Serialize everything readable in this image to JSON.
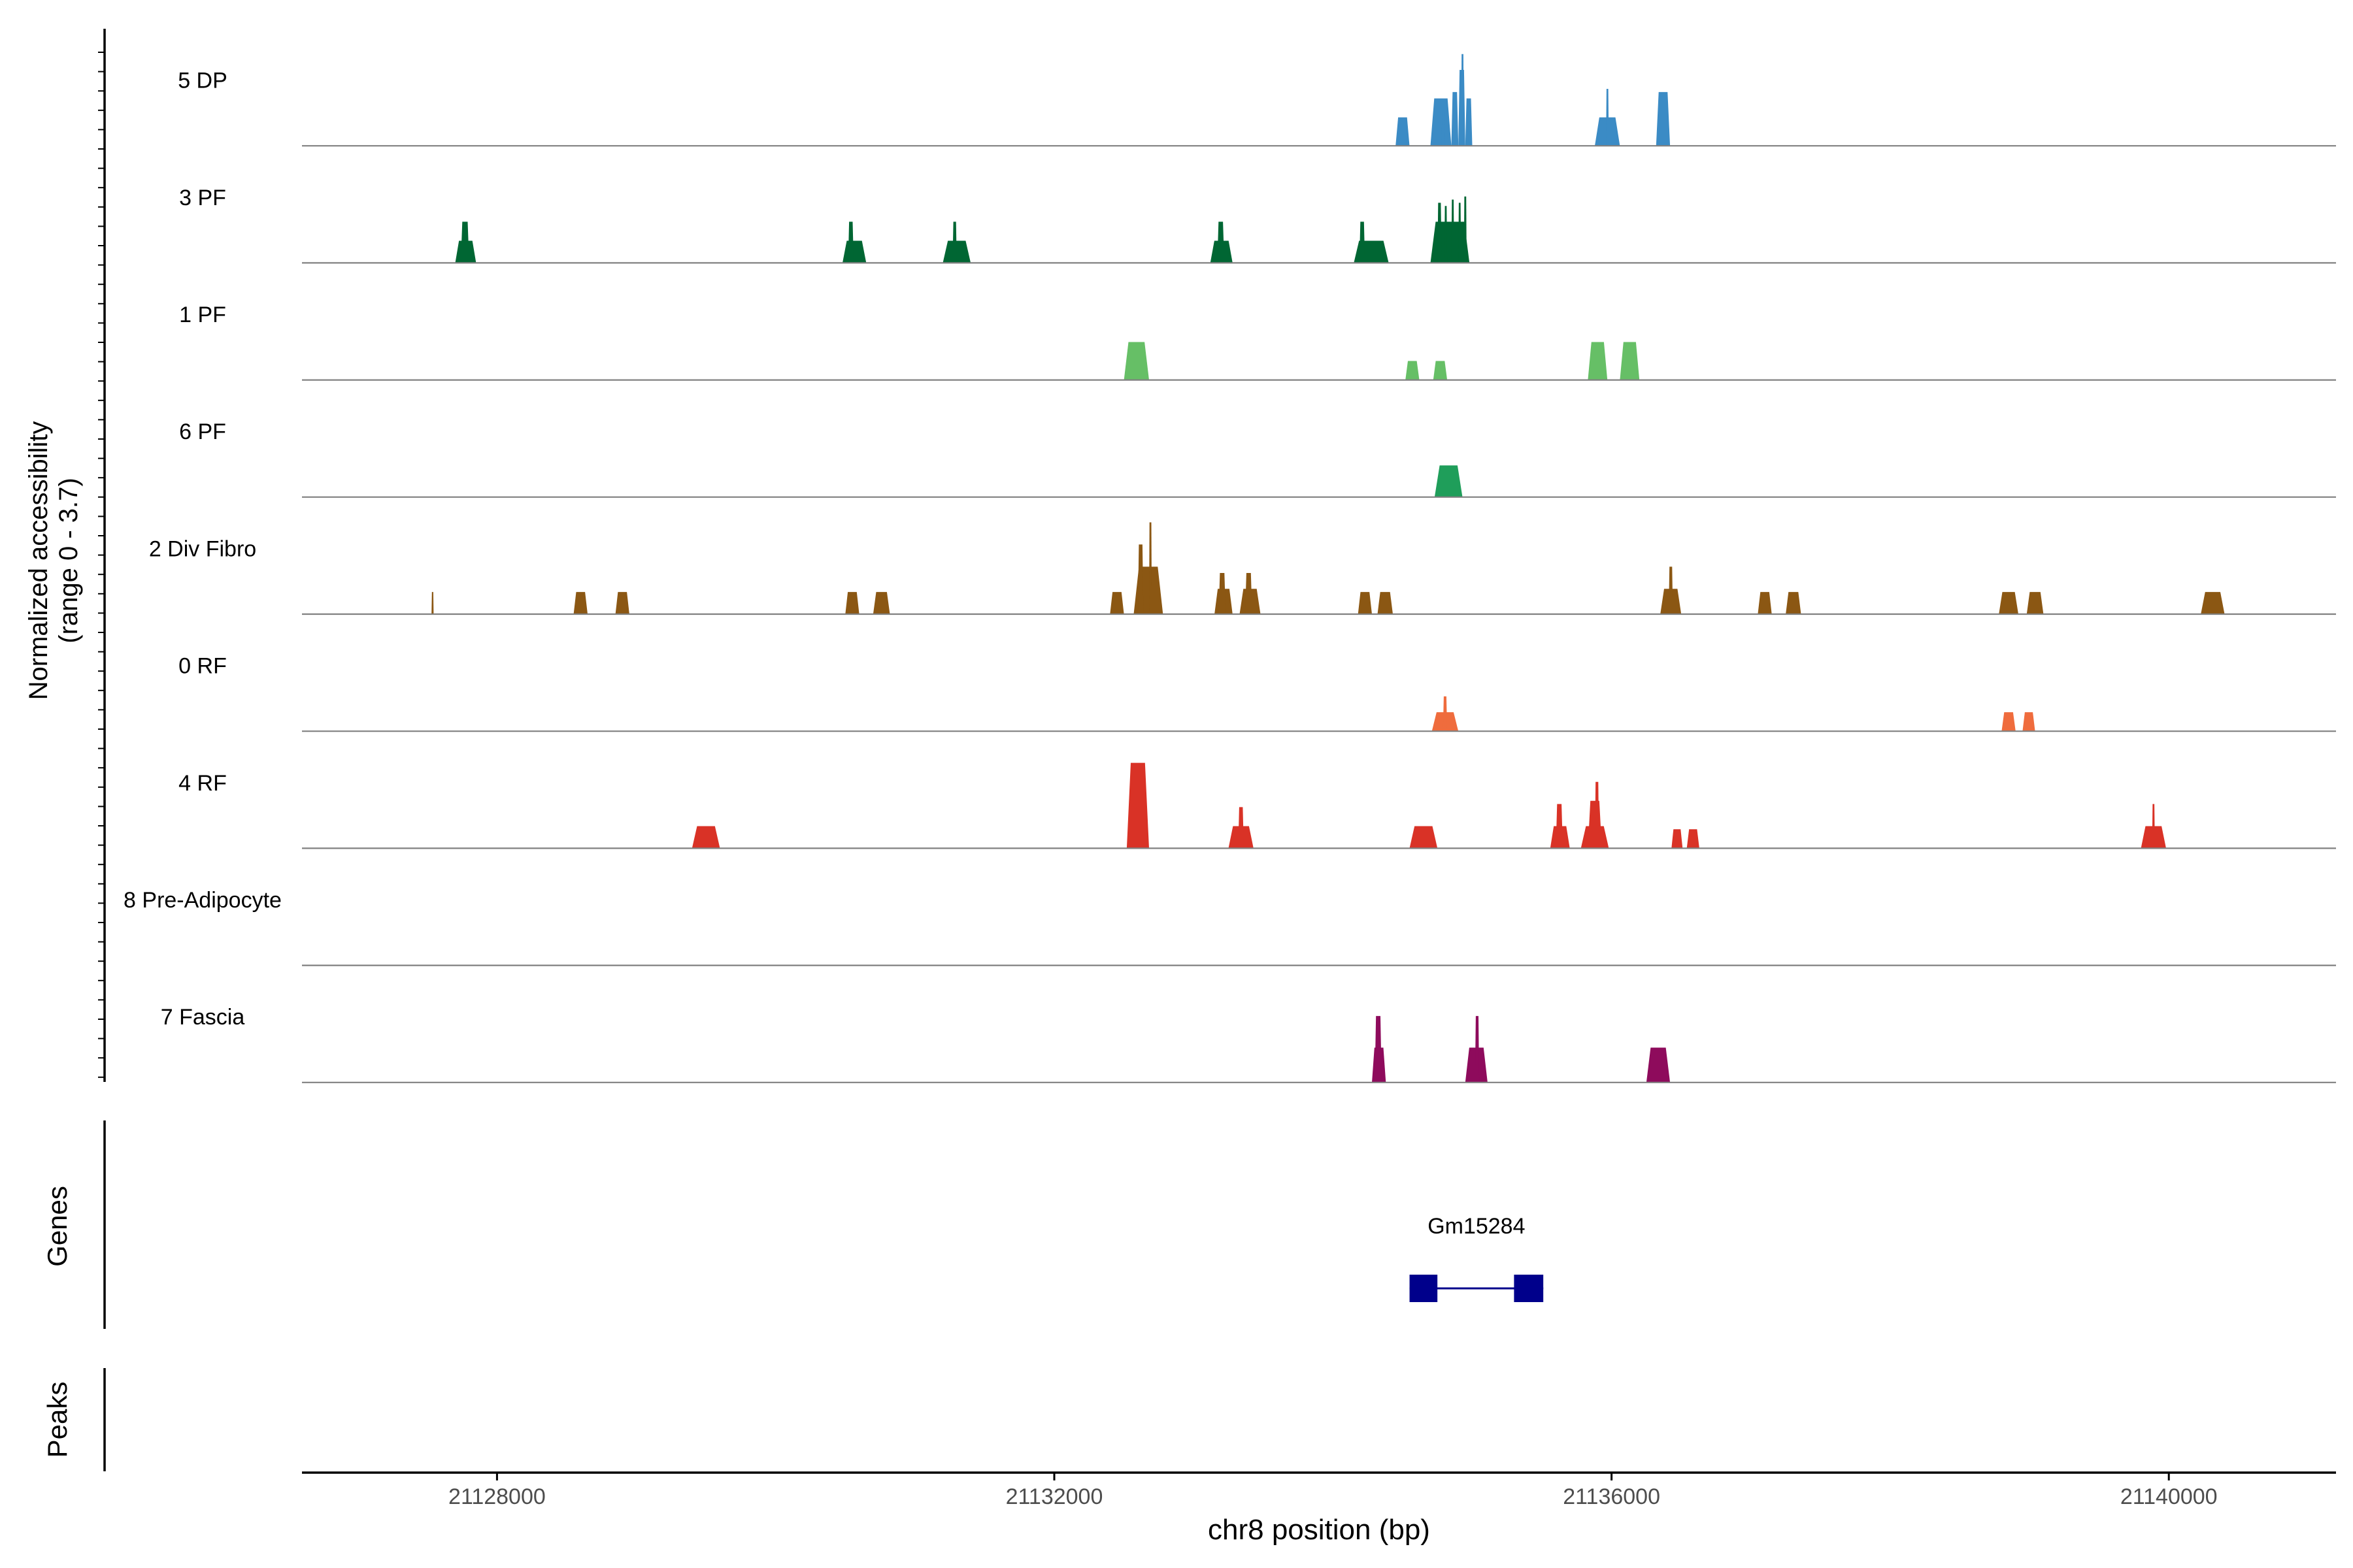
{
  "chart_data": {
    "type": "area",
    "title": "",
    "xlabel": "chr8 position (bp)",
    "ylabel": "Normalized accessibility",
    "ylabel_range": "(range 0 - 3.7)",
    "xlim": [
      21126600,
      21141200
    ],
    "x_ticks": [
      21128000,
      21132000,
      21136000,
      21140000
    ],
    "x_tick_labels": [
      "21128000",
      "21132000",
      "21136000",
      "21140000"
    ],
    "y_range": [
      0,
      3.7
    ],
    "tracks": [
      {
        "name": "5 DP",
        "color": "#3b8bc5",
        "peaks": [
          [
            21134450,
            21134550,
            0.9
          ],
          [
            21134700,
            21134850,
            1.5
          ],
          [
            21134780,
            21134800,
            1.1
          ],
          [
            21134850,
            21134900,
            1.7
          ],
          [
            21134900,
            21134950,
            2.4
          ],
          [
            21134920,
            21134940,
            2.9
          ],
          [
            21134950,
            21135000,
            1.5
          ],
          [
            21135880,
            21136060,
            0.9
          ],
          [
            21135960,
            21135980,
            1.8
          ],
          [
            21136320,
            21136420,
            1.7
          ]
        ]
      },
      {
        "name": "3 PF",
        "color": "#006633",
        "peaks": [
          [
            21127700,
            21127850,
            0.7
          ],
          [
            21127740,
            21127800,
            1.3
          ],
          [
            21130480,
            21130650,
            0.7
          ],
          [
            21130520,
            21130560,
            1.3
          ],
          [
            21131200,
            21131400,
            0.7
          ],
          [
            21131270,
            21131300,
            1.3
          ],
          [
            21133120,
            21133280,
            0.7
          ],
          [
            21133170,
            21133220,
            1.3
          ],
          [
            21134150,
            21134400,
            0.7
          ],
          [
            21134190,
            21134230,
            1.3
          ],
          [
            21134700,
            21134980,
            1.3
          ],
          [
            21134750,
            21134780,
            1.9
          ],
          [
            21134800,
            21134820,
            1.8
          ],
          [
            21134850,
            21134870,
            2.0
          ],
          [
            21134900,
            21134920,
            1.9
          ],
          [
            21134940,
            21134960,
            2.1
          ]
        ]
      },
      {
        "name": "1 PF",
        "color": "#66bf66",
        "peaks": [
          [
            21132500,
            21132680,
            1.2
          ],
          [
            21132570,
            21132630,
            1.2
          ],
          [
            21134520,
            21134620,
            0.6
          ],
          [
            21134720,
            21134820,
            0.6
          ],
          [
            21135830,
            21135970,
            1.2
          ],
          [
            21136060,
            21136200,
            1.2
          ]
        ]
      },
      {
        "name": "6 PF",
        "color": "#1f9e5a",
        "peaks": [
          [
            21134730,
            21134930,
            1.0
          ]
        ]
      },
      {
        "name": "2 Div Fibro",
        "color": "#8b5713",
        "peaks": [
          [
            21127530,
            21127545,
            0.7
          ],
          [
            21128550,
            21128650,
            0.7
          ],
          [
            21128850,
            21128950,
            0.7
          ],
          [
            21130500,
            21130600,
            0.7
          ],
          [
            21130700,
            21130820,
            0.7
          ],
          [
            21132400,
            21132500,
            0.7
          ],
          [
            21132570,
            21132780,
            1.5
          ],
          [
            21132600,
            21132640,
            2.2
          ],
          [
            21132680,
            21132700,
            2.9
          ],
          [
            21133150,
            21133280,
            0.8
          ],
          [
            21133180,
            21133230,
            1.3
          ],
          [
            21133330,
            21133480,
            0.8
          ],
          [
            21133370,
            21133420,
            1.3
          ],
          [
            21134180,
            21134280,
            0.7
          ],
          [
            21134320,
            21134430,
            0.7
          ],
          [
            21136350,
            21136500,
            0.8
          ],
          [
            21136410,
            21136440,
            1.5
          ],
          [
            21137050,
            21137150,
            0.7
          ],
          [
            21137250,
            21137360,
            0.7
          ],
          [
            21138780,
            21138920,
            0.7
          ],
          [
            21138980,
            21139100,
            0.7
          ],
          [
            21140230,
            21140400,
            0.7
          ]
        ]
      },
      {
        "name": "0 RF",
        "color": "#ef6c3d",
        "peaks": [
          [
            21134710,
            21134900,
            0.6
          ],
          [
            21134790,
            21134820,
            1.1
          ],
          [
            21138800,
            21138900,
            0.6
          ],
          [
            21138950,
            21139040,
            0.6
          ]
        ]
      },
      {
        "name": "4 RF",
        "color": "#d93226",
        "peaks": [
          [
            21129400,
            21129600,
            0.7
          ],
          [
            21132520,
            21132680,
            2.7
          ],
          [
            21133250,
            21133430,
            0.7
          ],
          [
            21133320,
            21133360,
            1.3
          ],
          [
            21134550,
            21134750,
            0.7
          ],
          [
            21135560,
            21135700,
            0.7
          ],
          [
            21135600,
            21135650,
            1.4
          ],
          [
            21135780,
            21135980,
            0.7
          ],
          [
            21135830,
            21135930,
            1.5
          ],
          [
            21135880,
            21135910,
            2.1
          ],
          [
            21136430,
            21136510,
            0.6
          ],
          [
            21136540,
            21136630,
            0.6
          ],
          [
            21139800,
            21139980,
            0.7
          ],
          [
            21139880,
            21139900,
            1.4
          ]
        ]
      },
      {
        "name": "8 Pre-Adipocyte",
        "color": "#e7a33a",
        "peaks": []
      },
      {
        "name": "7 Fascia",
        "color": "#8e0b5c",
        "peaks": [
          [
            21134280,
            21134380,
            1.1
          ],
          [
            21134300,
            21134350,
            2.1
          ],
          [
            21134950,
            21135110,
            1.1
          ],
          [
            21135020,
            21135050,
            2.1
          ],
          [
            21136250,
            21136420,
            1.1
          ]
        ]
      }
    ],
    "genes_panel": {
      "label": "Genes",
      "genes": [
        {
          "name": "Gm15284",
          "color": "#00008b",
          "start": 21134550,
          "end": 21135510,
          "exons": [
            [
              21134550,
              21134750
            ],
            [
              21135300,
              21135510
            ]
          ]
        }
      ]
    },
    "peaks_panel": {
      "label": "Peaks",
      "peaks": []
    },
    "colors": {
      "baseline": "#808080",
      "axis": "#000000",
      "text": "#000000"
    }
  }
}
